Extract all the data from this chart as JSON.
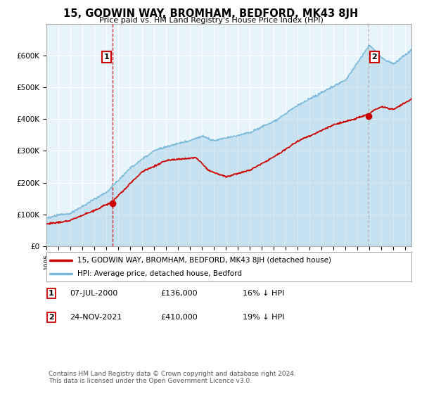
{
  "title": "15, GODWIN WAY, BROMHAM, BEDFORD, MK43 8JH",
  "subtitle": "Price paid vs. HM Land Registry's House Price Index (HPI)",
  "legend_line1": "15, GODWIN WAY, BROMHAM, BEDFORD, MK43 8JH (detached house)",
  "legend_line2": "HPI: Average price, detached house, Bedford",
  "annotation1_label": "1",
  "annotation1_date": "07-JUL-2000",
  "annotation1_price": "£136,000",
  "annotation1_hpi": "16% ↓ HPI",
  "annotation2_label": "2",
  "annotation2_date": "24-NOV-2021",
  "annotation2_price": "£410,000",
  "annotation2_hpi": "19% ↓ HPI",
  "footer": "Contains HM Land Registry data © Crown copyright and database right 2024.\nThis data is licensed under the Open Government Licence v3.0.",
  "hpi_color": "#7ab8d9",
  "hpi_fill_color": "#ddeef7",
  "price_color": "#cc0000",
  "vline1_color": "#cc0000",
  "vline2_color": "#aaaaaa",
  "background_color": "#ffffff",
  "chart_bg_color": "#e8f4fb",
  "grid_color": "#ffffff",
  "ylim": [
    0,
    700000
  ],
  "yticks": [
    0,
    100000,
    200000,
    300000,
    400000,
    500000,
    600000
  ],
  "ytick_labels": [
    "£0",
    "£100K",
    "£200K",
    "£300K",
    "£400K",
    "£500K",
    "£600K"
  ],
  "sale1_year": 2000.53,
  "sale1_price": 136000,
  "sale2_year": 2021.9,
  "sale2_price": 410000
}
